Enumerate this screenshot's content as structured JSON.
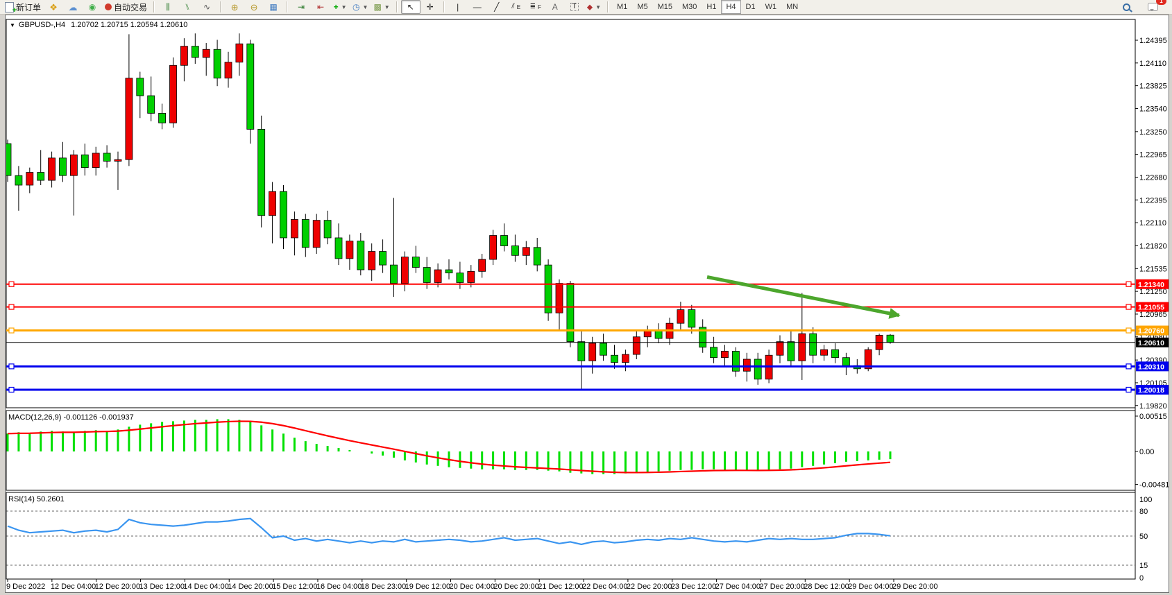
{
  "toolbar": {
    "new_order_label": "新订单",
    "autotrading_label": "自动交易",
    "channel_letter": "E",
    "fibo_letter": "F",
    "text_letter": "A",
    "label_letter": "T",
    "timeframes": [
      "M1",
      "M5",
      "M15",
      "M30",
      "H1",
      "H4",
      "D1",
      "W1",
      "MN"
    ],
    "active_timeframe": "H4",
    "notification_badge": "1"
  },
  "chart": {
    "title_symbol": "GBPUSD-,H4",
    "title_quote": "1.20702 1.20715 1.20594 1.20610",
    "macd_label": "MACD(12,26,9) -0.001126 -0.001937",
    "rsi_label": "RSI(14) 50.2601"
  },
  "chart_data": [
    {
      "type": "candlestick",
      "title": "GBPUSD- H4",
      "up_color": "#ee0000",
      "down_color": "#00cf00",
      "price_ticks": [
        1.24395,
        1.2411,
        1.23825,
        1.2354,
        1.2325,
        1.22965,
        1.2268,
        1.22395,
        1.2211,
        1.2182,
        1.21535,
        1.2125,
        1.20965,
        1.2068,
        1.2039,
        1.20105,
        1.1982
      ],
      "x_labels": [
        "9 Dec 2022",
        "12 Dec 04:00",
        "12 Dec 20:00",
        "13 Dec 12:00",
        "14 Dec 04:00",
        "14 Dec 20:00",
        "15 Dec 12:00",
        "16 Dec 04:00",
        "18 Dec 23:00",
        "19 Dec 12:00",
        "20 Dec 04:00",
        "20 Dec 20:00",
        "21 Dec 12:00",
        "22 Dec 04:00",
        "22 Dec 20:00",
        "23 Dec 12:00",
        "27 Dec 04:00",
        "27 Dec 20:00",
        "28 Dec 12:00",
        "29 Dec 04:00",
        "29 Dec 20:00"
      ],
      "hlines": [
        {
          "price": 1.2134,
          "color": "#ff0000",
          "width": 2
        },
        {
          "price": 1.21055,
          "color": "#ff0000",
          "width": 2
        },
        {
          "price": 1.2076,
          "color": "#ffa600",
          "width": 3
        },
        {
          "price": 1.2061,
          "color": "#000000",
          "width": 1,
          "current": true
        },
        {
          "price": 1.2031,
          "color": "#0000ee",
          "width": 3
        },
        {
          "price": 1.20018,
          "color": "#0000ee",
          "width": 3
        }
      ],
      "arrow": {
        "i1": 63.4,
        "p1": 1.2143,
        "i2": 80.8,
        "p2": 1.2095,
        "color": "#4ca62c"
      },
      "candles": [
        [
          1.231,
          1.2315,
          1.2262,
          1.227
        ],
        [
          1.227,
          1.2282,
          1.2226,
          1.2258
        ],
        [
          1.2258,
          1.228,
          1.2248,
          1.2274
        ],
        [
          1.2274,
          1.2302,
          1.2258,
          1.2264
        ],
        [
          1.2264,
          1.23,
          1.2255,
          1.2292
        ],
        [
          1.2292,
          1.2312,
          1.2262,
          1.227
        ],
        [
          1.227,
          1.2302,
          1.222,
          1.2296
        ],
        [
          1.2296,
          1.231,
          1.227,
          1.228
        ],
        [
          1.228,
          1.2306,
          1.227,
          1.2298
        ],
        [
          1.2298,
          1.2308,
          1.228,
          1.2288
        ],
        [
          1.2288,
          1.23,
          1.2252,
          1.229
        ],
        [
          1.229,
          1.2447,
          1.2282,
          1.2392
        ],
        [
          1.2392,
          1.24,
          1.2342,
          1.237
        ],
        [
          1.237,
          1.2394,
          1.2338,
          1.2348
        ],
        [
          1.2348,
          1.236,
          1.2328,
          1.2336
        ],
        [
          1.2336,
          1.2418,
          1.233,
          1.2408
        ],
        [
          1.2408,
          1.2442,
          1.2388,
          1.2432
        ],
        [
          1.2432,
          1.2448,
          1.241,
          1.2418
        ],
        [
          1.2418,
          1.2436,
          1.2395,
          1.2428
        ],
        [
          1.2428,
          1.244,
          1.2382,
          1.2392
        ],
        [
          1.2392,
          1.2425,
          1.238,
          1.2412
        ],
        [
          1.2412,
          1.2448,
          1.2395,
          1.2435
        ],
        [
          1.2435,
          1.244,
          1.231,
          1.2328
        ],
        [
          1.2328,
          1.2345,
          1.2205,
          1.222
        ],
        [
          1.222,
          1.2262,
          1.2185,
          1.225
        ],
        [
          1.225,
          1.2258,
          1.2178,
          1.2192
        ],
        [
          1.2192,
          1.2225,
          1.217,
          1.2215
        ],
        [
          1.2215,
          1.2222,
          1.2168,
          1.218
        ],
        [
          1.218,
          1.2222,
          1.2172,
          1.2214
        ],
        [
          1.2214,
          1.2226,
          1.2184,
          1.2192
        ],
        [
          1.2192,
          1.221,
          1.2158,
          1.2166
        ],
        [
          1.2166,
          1.2196,
          1.2152,
          1.2188
        ],
        [
          1.2188,
          1.2198,
          1.2145,
          1.2152
        ],
        [
          1.2152,
          1.2185,
          1.2138,
          1.2175
        ],
        [
          1.2175,
          1.219,
          1.2148,
          1.2158
        ],
        [
          1.2158,
          1.2242,
          1.2118,
          1.2135
        ],
        [
          1.2135,
          1.2175,
          1.2125,
          1.2168
        ],
        [
          1.2168,
          1.2182,
          1.2148,
          1.2155
        ],
        [
          1.2155,
          1.2168,
          1.2128,
          1.2136
        ],
        [
          1.2136,
          1.216,
          1.213,
          1.2152
        ],
        [
          1.2152,
          1.2165,
          1.214,
          1.2148
        ],
        [
          1.2148,
          1.2162,
          1.2128,
          1.2136
        ],
        [
          1.2136,
          1.2158,
          1.213,
          1.215
        ],
        [
          1.215,
          1.2172,
          1.2142,
          1.2165
        ],
        [
          1.2165,
          1.2202,
          1.2158,
          1.2195
        ],
        [
          1.2195,
          1.221,
          1.2175,
          1.2182
        ],
        [
          1.2182,
          1.2196,
          1.2162,
          1.217
        ],
        [
          1.217,
          1.2188,
          1.2158,
          1.218
        ],
        [
          1.218,
          1.2192,
          1.215,
          1.2158
        ],
        [
          1.2158,
          1.2165,
          1.2088,
          1.2098
        ],
        [
          1.2098,
          1.214,
          1.2075,
          1.2135
        ],
        [
          1.2135,
          1.2138,
          1.2055,
          1.2062
        ],
        [
          1.2062,
          1.2075,
          1.2002,
          1.2038
        ],
        [
          1.2038,
          1.2068,
          1.2022,
          1.206
        ],
        [
          1.206,
          1.2072,
          1.2038,
          1.2045
        ],
        [
          1.2045,
          1.2058,
          1.2028,
          1.2036
        ],
        [
          1.2036,
          1.2052,
          1.2025,
          1.2046
        ],
        [
          1.2046,
          1.2075,
          1.204,
          1.2068
        ],
        [
          1.2068,
          1.2082,
          1.2055,
          1.2076
        ],
        [
          1.2076,
          1.2085,
          1.206,
          1.2066
        ],
        [
          1.2066,
          1.2092,
          1.2058,
          1.2085
        ],
        [
          1.2085,
          1.2112,
          1.2075,
          1.2102
        ],
        [
          1.2102,
          1.2108,
          1.2072,
          1.208
        ],
        [
          1.208,
          1.209,
          1.2048,
          1.2055
        ],
        [
          1.2055,
          1.2068,
          1.2035,
          1.2042
        ],
        [
          1.2042,
          1.2058,
          1.203,
          1.205
        ],
        [
          1.205,
          1.2055,
          1.2018,
          1.2025
        ],
        [
          1.2025,
          1.2048,
          1.2012,
          1.204
        ],
        [
          1.204,
          1.2048,
          1.2008,
          1.2015
        ],
        [
          1.2015,
          1.2052,
          1.201,
          1.2045
        ],
        [
          1.2045,
          1.207,
          1.2035,
          1.2062
        ],
        [
          1.2062,
          1.2075,
          1.203,
          1.2038
        ],
        [
          1.2038,
          1.2123,
          1.2014,
          1.2072
        ],
        [
          1.2072,
          1.208,
          1.2035,
          1.2045
        ],
        [
          1.2045,
          1.2058,
          1.2038,
          1.2052
        ],
        [
          1.2052,
          1.206,
          1.2035,
          1.2042
        ],
        [
          1.2042,
          1.2048,
          1.202,
          1.2032
        ],
        [
          1.2032,
          1.204,
          1.2022,
          1.2028
        ],
        [
          1.2028,
          1.2055,
          1.2025,
          1.2052
        ],
        [
          1.2052,
          1.2072,
          1.2045,
          1.207
        ],
        [
          1.20702,
          1.20715,
          1.20594,
          1.2061
        ]
      ]
    },
    {
      "type": "bar",
      "name": "MACD(12,26,9)",
      "main_last": -0.001126,
      "signal_last": -0.001937,
      "ticks": [
        0.00515,
        0.0,
        -0.004811
      ],
      "bar_color": "#00e000",
      "signal_color": "#ff0000",
      "values": [
        0.0026,
        0.0028,
        0.0027,
        0.0029,
        0.003,
        0.0029,
        0.0028,
        0.003,
        0.0031,
        0.003,
        0.0032,
        0.0036,
        0.0039,
        0.0041,
        0.0043,
        0.0044,
        0.0045,
        0.0046,
        0.0046,
        0.0047,
        0.0047,
        0.0046,
        0.0043,
        0.0038,
        0.0032,
        0.0026,
        0.002,
        0.0015,
        0.0011,
        0.0008,
        0.0005,
        0.0002,
        0.0,
        -0.0003,
        -0.0006,
        -0.0009,
        -0.0013,
        -0.0016,
        -0.0019,
        -0.0021,
        -0.0023,
        -0.0024,
        -0.0025,
        -0.0026,
        -0.0026,
        -0.0026,
        -0.0027,
        -0.0027,
        -0.0027,
        -0.0028,
        -0.0029,
        -0.0031,
        -0.0032,
        -0.0033,
        -0.0033,
        -0.0033,
        -0.0032,
        -0.0031,
        -0.003,
        -0.0029,
        -0.0028,
        -0.0027,
        -0.0027,
        -0.0026,
        -0.0026,
        -0.0027,
        -0.0027,
        -0.0028,
        -0.0028,
        -0.0027,
        -0.0026,
        -0.0025,
        -0.0023,
        -0.0021,
        -0.0019,
        -0.0017,
        -0.0015,
        -0.0014,
        -0.0013,
        -0.0012,
        -0.001126
      ]
    },
    {
      "type": "line",
      "name": "RSI(14)",
      "last": 50.2601,
      "line_color": "#3a95f0",
      "levels": [
        80,
        50,
        15
      ],
      "ticks": [
        100,
        80,
        50,
        15,
        0
      ],
      "values": [
        62,
        57,
        54,
        55,
        56,
        57,
        54,
        56,
        57,
        55,
        58,
        70,
        66,
        64,
        63,
        62,
        63,
        65,
        67,
        67,
        68,
        70,
        71,
        60,
        48,
        50,
        45,
        47,
        44,
        46,
        44,
        42,
        44,
        42,
        44,
        43,
        46,
        43,
        44,
        45,
        46,
        45,
        43,
        44,
        46,
        48,
        45,
        46,
        47,
        44,
        41,
        43,
        40,
        43,
        44,
        42,
        43,
        45,
        46,
        45,
        47,
        46,
        48,
        46,
        44,
        43,
        44,
        43,
        45,
        47,
        46,
        47,
        46,
        46,
        47,
        48,
        51,
        53,
        53,
        52,
        50.26
      ]
    }
  ]
}
